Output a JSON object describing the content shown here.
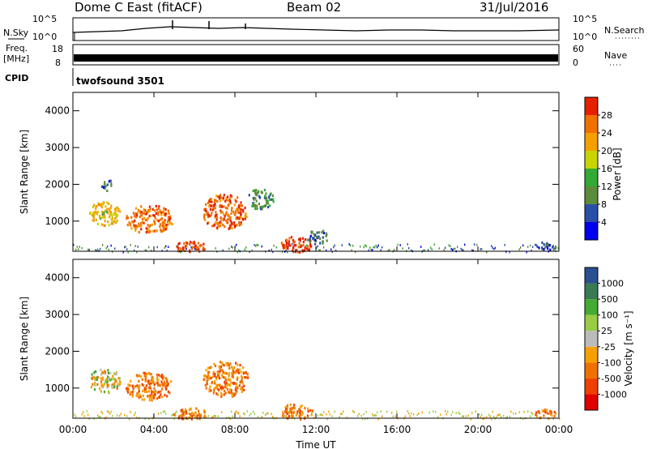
{
  "header": {
    "station": "Dome C East (fitACF)",
    "beam": "Beam 02",
    "date": "31/Jul/2016"
  },
  "aux_panels": {
    "nsky_label": "N.Sky",
    "nsearch_label": "N.Search",
    "nsky_ticks": [
      "10^5",
      "10^0"
    ],
    "nsearch_ticks": [
      "10^5",
      "10^0"
    ],
    "freq_label": [
      "Freq.",
      "[MHz]"
    ],
    "freq_ticks": [
      "18",
      "8"
    ],
    "nave_label": "Nave",
    "nave_ticks": [
      "60",
      "0"
    ],
    "cpid_label": "CPID",
    "cpid_value": "twofsound 3501"
  },
  "colors": {
    "power_scale": [
      "#0000ee",
      "#2a4fa8",
      "#5b8c3a",
      "#33aa33",
      "#c8d400",
      "#f5a000",
      "#f07000",
      "#e52000"
    ],
    "velocity_scale": [
      "#e00000",
      "#f04000",
      "#f07000",
      "#f5a000",
      "#bbbbbb",
      "#99cc44",
      "#44aa33",
      "#3a7a55",
      "#2a5090",
      "#1a30c0"
    ]
  },
  "chart_data": [
    {
      "type": "heatmap",
      "title": "",
      "ylabel": "Slant Range [km]",
      "xlabel": "",
      "x_ticks": [
        "00:00",
        "04:00",
        "08:00",
        "12:00",
        "16:00",
        "20:00",
        "00:00"
      ],
      "xlim_hours": [
        0,
        24
      ],
      "y_ticks": [
        "1000",
        "2000",
        "3000",
        "4000"
      ],
      "ylim_km": [
        180,
        4500
      ],
      "colorbar": {
        "label": "Power [dB]",
        "ticks": [
          "4",
          "8",
          "12",
          "16",
          "20",
          "24",
          "28"
        ],
        "range": [
          0,
          32
        ]
      },
      "regions": [
        {
          "t0": 0.8,
          "t1": 2.3,
          "r0": 900,
          "r1": 1550,
          "level": 20
        },
        {
          "t0": 1.4,
          "t1": 2.0,
          "r0": 1850,
          "r1": 2150,
          "level": 8
        },
        {
          "t0": 2.6,
          "t1": 4.9,
          "r0": 700,
          "r1": 1450,
          "level": 26
        },
        {
          "t0": 4.9,
          "t1": 6.6,
          "r0": 180,
          "r1": 480,
          "level": 29
        },
        {
          "t0": 6.4,
          "t1": 8.6,
          "r0": 800,
          "r1": 1750,
          "level": 27
        },
        {
          "t0": 8.6,
          "t1": 9.9,
          "r0": 1350,
          "r1": 1900,
          "level": 10
        },
        {
          "t0": 10.2,
          "t1": 11.8,
          "r0": 180,
          "r1": 600,
          "level": 29
        },
        {
          "t0": 11.5,
          "t1": 12.6,
          "r0": 400,
          "r1": 800,
          "level": 8
        },
        {
          "t0": 22.8,
          "t1": 23.8,
          "r0": 200,
          "r1": 450,
          "level": 6
        }
      ]
    },
    {
      "type": "heatmap",
      "title": "",
      "ylabel": "Slant Range [km]",
      "xlabel": "Time UT",
      "x_ticks": [
        "00:00",
        "04:00",
        "08:00",
        "12:00",
        "16:00",
        "20:00",
        "00:00"
      ],
      "xlim_hours": [
        0,
        24
      ],
      "y_ticks": [
        "1000",
        "2000",
        "3000",
        "4000"
      ],
      "ylim_km": [
        180,
        4500
      ],
      "colorbar": {
        "label": "Velocity [m s⁻¹]",
        "ticks": [
          "1000",
          "500",
          "100",
          "25",
          "-25",
          "-100",
          "-500",
          "-1000"
        ]
      },
      "regions": [
        {
          "t0": 0.8,
          "t1": 2.3,
          "r0": 900,
          "r1": 1550,
          "level": "mixed-green"
        },
        {
          "t0": 2.6,
          "t1": 4.9,
          "r0": 700,
          "r1": 1450,
          "level": "orange"
        },
        {
          "t0": 4.9,
          "t1": 6.6,
          "r0": 180,
          "r1": 480,
          "level": "orange"
        },
        {
          "t0": 6.4,
          "t1": 8.6,
          "r0": 800,
          "r1": 1750,
          "level": "orange"
        },
        {
          "t0": 10.2,
          "t1": 11.8,
          "r0": 180,
          "r1": 600,
          "level": "orange"
        },
        {
          "t0": 22.8,
          "t1": 23.8,
          "r0": 200,
          "r1": 450,
          "level": "orange"
        }
      ]
    }
  ]
}
